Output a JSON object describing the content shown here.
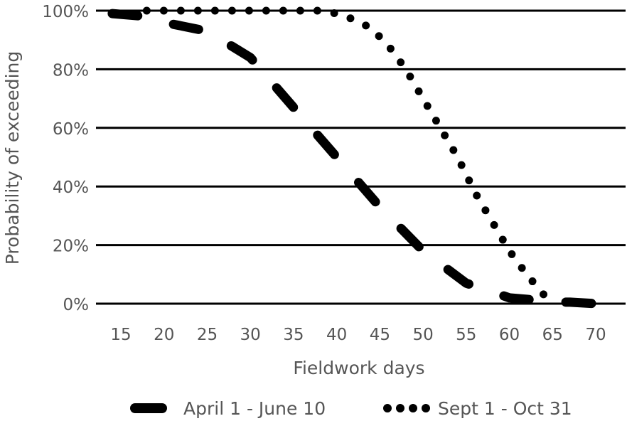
{
  "chart_data": {
    "type": "line",
    "title": "",
    "xlabel": "Fieldwork days",
    "ylabel": "Probability of exceeding",
    "xlim": [
      15,
      70
    ],
    "ylim": [
      0,
      100
    ],
    "x_ticks": [
      "15",
      "20",
      "25",
      "30",
      "35",
      "40",
      "45",
      "50",
      "55",
      "60",
      "65",
      "70"
    ],
    "y_ticks": [
      "0%",
      "20%",
      "40%",
      "60%",
      "80%",
      "100%"
    ],
    "grid": "horizontal",
    "legend_position": "bottom",
    "series": [
      {
        "name": "April 1 - June 10",
        "style": "dashed",
        "color": "#000000",
        "x": [
          14,
          18,
          20,
          25,
          30,
          35,
          40,
          45,
          50,
          55,
          58,
          60,
          62,
          65,
          67,
          70
        ],
        "y": [
          99,
          98,
          96,
          93,
          84,
          67,
          50,
          33,
          18,
          7,
          4,
          2,
          1.5,
          0.5,
          0.5,
          0
        ]
      },
      {
        "name": "Sept 1 - Oct 31",
        "style": "dotted",
        "color": "#000000",
        "x": [
          18,
          20,
          25,
          30,
          35,
          38,
          40,
          42,
          44,
          46,
          48,
          50,
          52,
          54,
          56,
          58,
          60,
          62,
          64,
          65
        ],
        "y": [
          100,
          100,
          100,
          100,
          100,
          100,
          99,
          97,
          94,
          88,
          80,
          70,
          60,
          50,
          38,
          28,
          18,
          10,
          3,
          0
        ]
      }
    ]
  }
}
